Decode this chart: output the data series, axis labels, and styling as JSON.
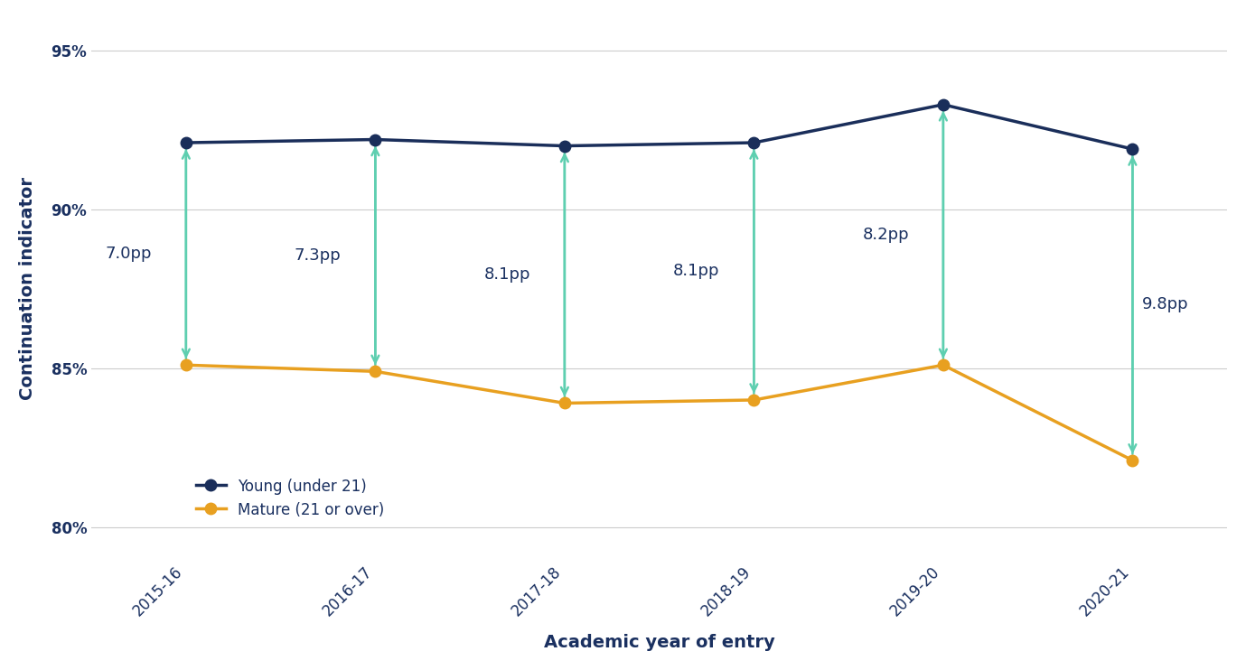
{
  "years": [
    "2015-16",
    "2016-17",
    "2017-18",
    "2018-19",
    "2019-20",
    "2020-21"
  ],
  "young": [
    92.1,
    92.2,
    92.0,
    92.1,
    93.3,
    91.9
  ],
  "mature": [
    85.1,
    84.9,
    83.9,
    84.0,
    85.1,
    82.1
  ],
  "gaps": [
    "7.0pp",
    "7.3pp",
    "8.1pp",
    "8.1pp",
    "8.2pp",
    "9.8pp"
  ],
  "gap_label_x_offsets": [
    -0.18,
    -0.18,
    -0.18,
    -0.18,
    -0.18,
    0.05
  ],
  "gap_label_y_offsets": [
    0.0,
    0.0,
    0.0,
    0.0,
    0.0,
    0.0
  ],
  "young_color": "#1a2e5a",
  "mature_color": "#e8a020",
  "arrow_color": "#5ecfb0",
  "young_label": "Young (under 21)",
  "mature_label": "Mature (21 or over)",
  "xlabel": "Academic year of entry",
  "ylabel": "Continuation indicator",
  "yticks": [
    80,
    85,
    90,
    95
  ],
  "ylim": [
    79.0,
    96.0
  ],
  "xlim": [
    -0.5,
    5.5
  ],
  "label_fontsize": 13,
  "tick_fontsize": 12,
  "legend_fontsize": 12,
  "axis_label_color": "#1a3060",
  "tick_label_color": "#1a3060",
  "grid_color": "#cccccc",
  "background_color": "#ffffff"
}
